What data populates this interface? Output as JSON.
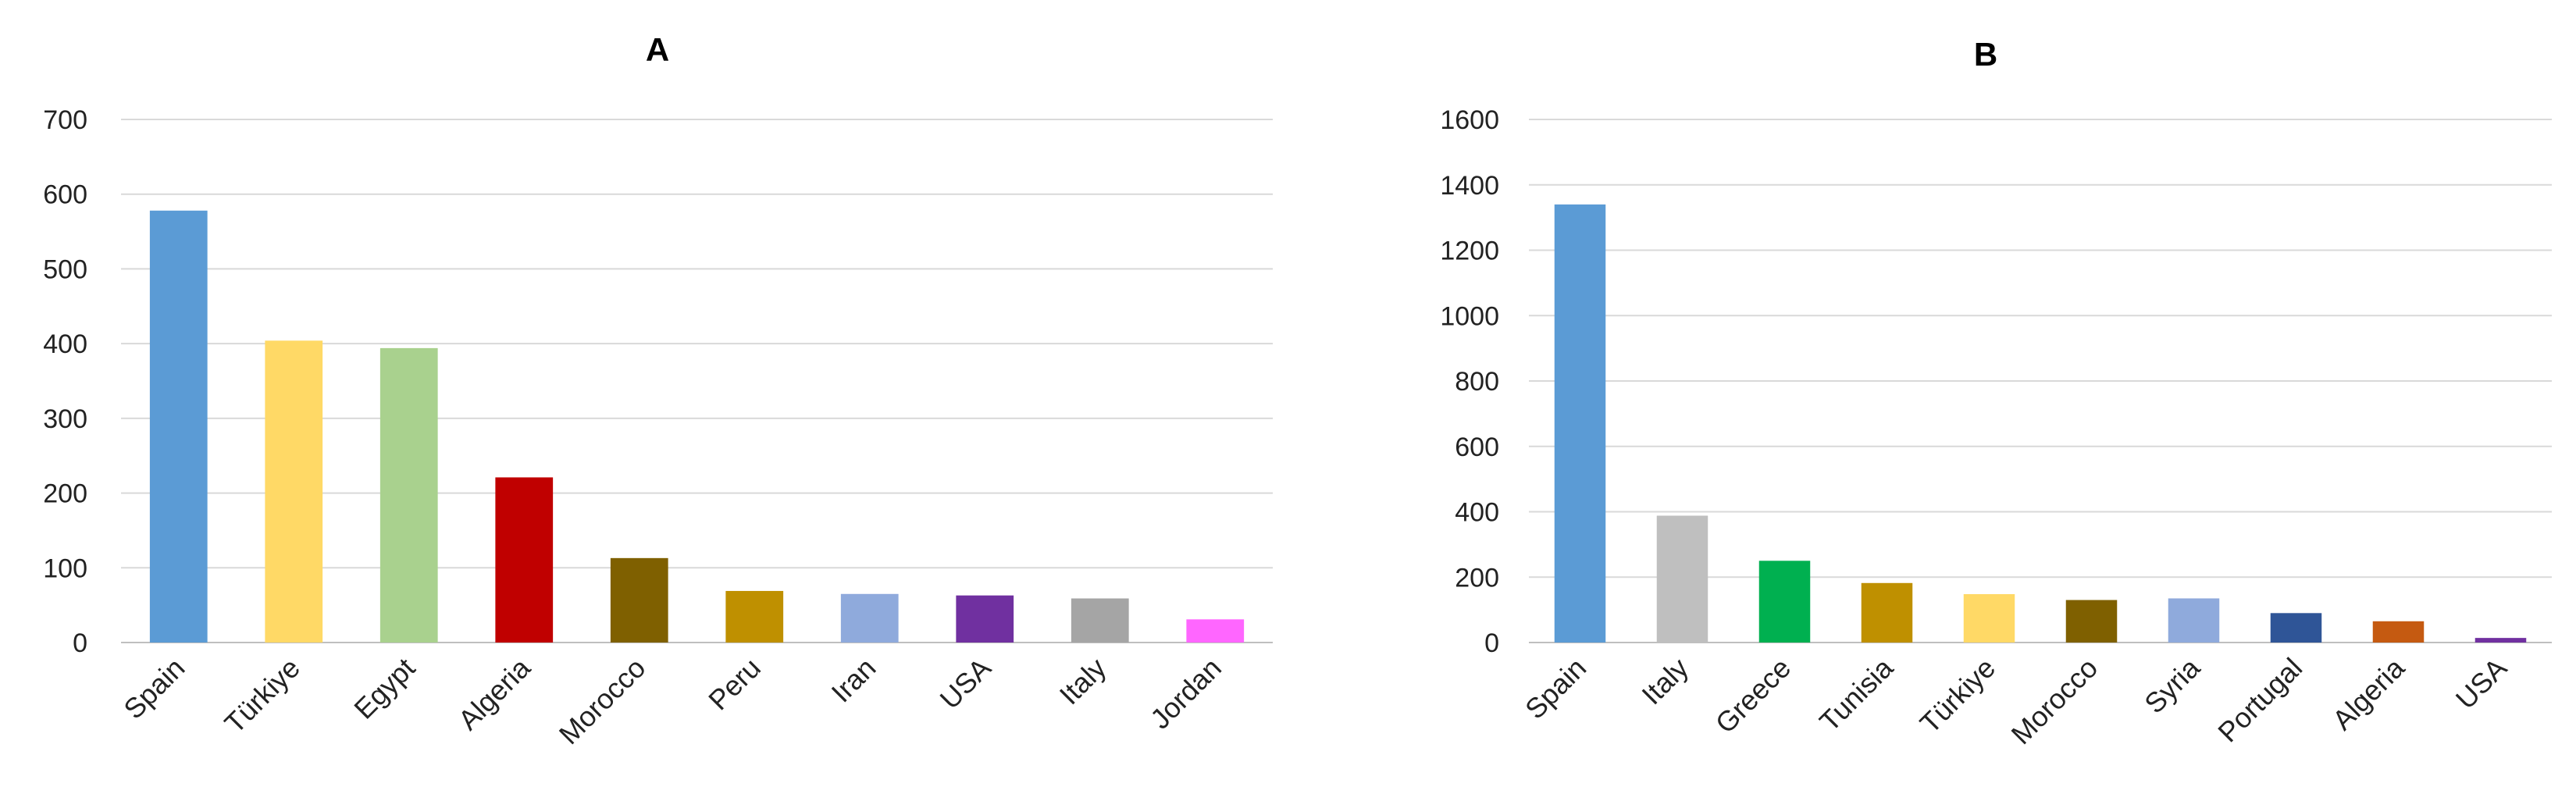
{
  "chart_data": [
    {
      "type": "bar",
      "title": "A",
      "xlabel": "",
      "ylabel": "",
      "ylim": [
        0,
        700
      ],
      "yticks": [
        0,
        100,
        200,
        300,
        400,
        500,
        600,
        700
      ],
      "grid": true,
      "categories": [
        "Spain",
        "Türkiye",
        "Egypt",
        "Algeria",
        "Morocco",
        "Peru",
        "Iran",
        "USA",
        "Italy",
        "Jordan"
      ],
      "values": [
        578,
        404,
        394,
        221,
        113,
        69,
        65,
        63,
        59,
        31
      ],
      "colors": [
        "#5b9bd5",
        "#ffd966",
        "#a9d18e",
        "#c00000",
        "#7f6000",
        "#bf9000",
        "#8faadc",
        "#7030a0",
        "#a5a5a5",
        "#ff66ff"
      ]
    },
    {
      "type": "bar",
      "title": "B",
      "xlabel": "",
      "ylabel": "",
      "ylim": [
        0,
        1600
      ],
      "yticks": [
        0,
        200,
        400,
        600,
        800,
        1000,
        1200,
        1400,
        1600
      ],
      "grid": true,
      "categories": [
        "Spain",
        "Italy",
        "Greece",
        "Tunisia",
        "Türkiye",
        "Morocco",
        "Syria",
        "Portugal",
        "Algeria",
        "USA"
      ],
      "values": [
        1340,
        388,
        250,
        182,
        148,
        130,
        135,
        90,
        65,
        14
      ],
      "colors": [
        "#5b9bd5",
        "#bfbfbf",
        "#00b050",
        "#bf9000",
        "#ffd966",
        "#7f6000",
        "#8faadc",
        "#2f5597",
        "#c55a11",
        "#7030a0"
      ]
    }
  ]
}
